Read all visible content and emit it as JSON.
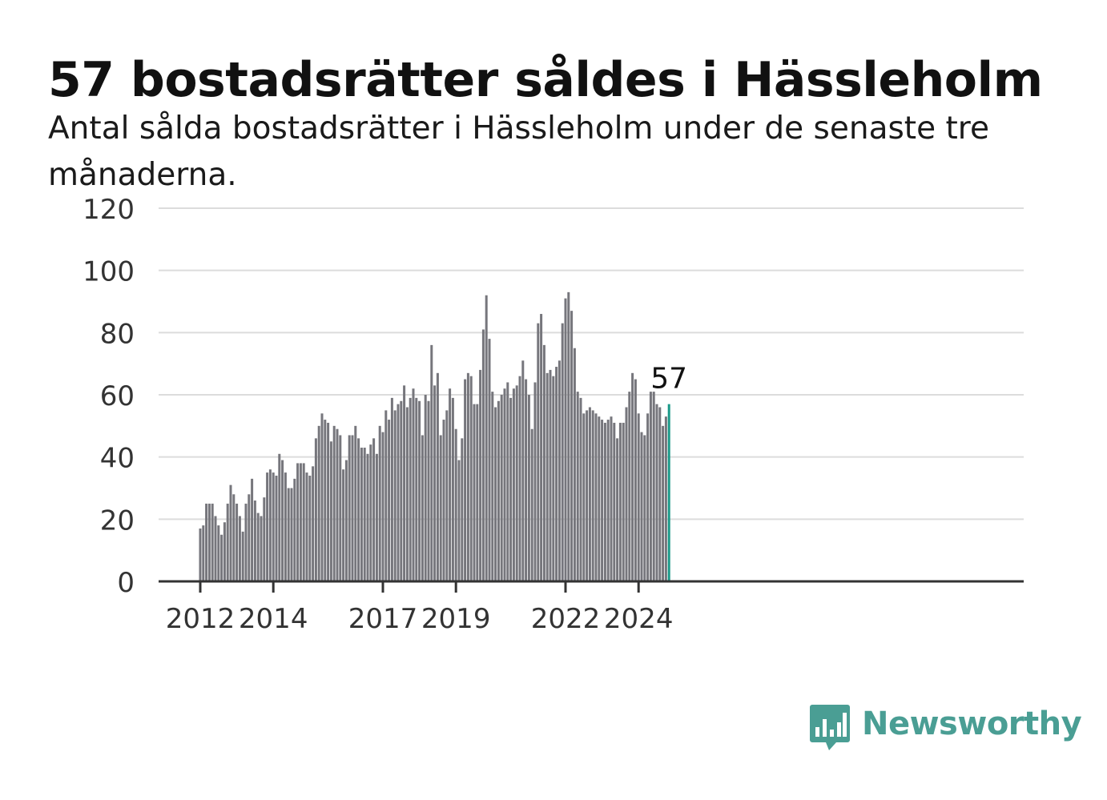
{
  "title": "57 bostadsrätter såldes i Hässleholm",
  "subtitle": "Antal sålda bostadsrätter i Hässleholm under de senaste tre månaderna.",
  "brand": {
    "name": "Newsworthy",
    "icon": "newsworthy-logo-icon",
    "color": "#4a9e94"
  },
  "chart_data": {
    "type": "bar",
    "x_start": "2012-01",
    "x_interval": "month",
    "values": [
      17,
      18,
      25,
      25,
      25,
      21,
      18,
      15,
      19,
      25,
      31,
      28,
      25,
      21,
      16,
      25,
      28,
      33,
      26,
      22,
      21,
      27,
      35,
      36,
      35,
      34,
      41,
      39,
      35,
      30,
      30,
      33,
      38,
      38,
      38,
      35,
      34,
      37,
      46,
      50,
      54,
      52,
      51,
      45,
      50,
      49,
      47,
      36,
      39,
      47,
      47,
      50,
      46,
      43,
      43,
      41,
      44,
      46,
      41,
      50,
      48,
      55,
      52,
      59,
      55,
      57,
      58,
      63,
      56,
      59,
      62,
      59,
      58,
      47,
      60,
      58,
      76,
      63,
      67,
      47,
      52,
      55,
      62,
      59,
      49,
      39,
      46,
      65,
      67,
      66,
      57,
      57,
      68,
      81,
      92,
      78,
      61,
      56,
      58,
      60,
      62,
      64,
      59,
      62,
      63,
      66,
      71,
      65,
      60,
      49,
      64,
      83,
      86,
      76,
      67,
      68,
      66,
      69,
      71,
      83,
      91,
      93,
      87,
      75,
      61,
      59,
      54,
      55,
      56,
      55,
      54,
      53,
      52,
      51,
      52,
      53,
      51,
      46,
      51,
      51,
      56,
      61,
      67,
      65,
      54,
      48,
      47,
      54,
      61,
      61,
      57,
      56,
      50,
      53,
      57
    ],
    "highlight_last": {
      "value": 57,
      "label": "57",
      "color": "#1a9988"
    },
    "bar_color": "#76767c",
    "x_ticks": [
      {
        "label": "2012",
        "month_index": 0
      },
      {
        "label": "2014",
        "month_index": 24
      },
      {
        "label": "2017",
        "month_index": 60
      },
      {
        "label": "2019",
        "month_index": 84
      },
      {
        "label": "2022",
        "month_index": 120
      },
      {
        "label": "2024",
        "month_index": 144
      }
    ],
    "y_ticks": [
      0,
      20,
      40,
      60,
      80,
      100,
      120
    ],
    "ylim": [
      0,
      120
    ],
    "grid": true,
    "xlabel": "",
    "ylabel": ""
  }
}
